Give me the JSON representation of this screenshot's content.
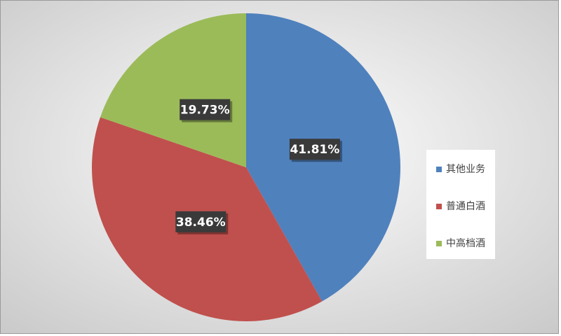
{
  "chart_data": {
    "type": "pie",
    "categories": [
      "其他业务",
      "普通白酒",
      "中高档酒"
    ],
    "values": [
      41.81,
      38.46,
      19.73
    ],
    "value_labels": [
      "41.81%",
      "38.46%",
      "19.73%"
    ],
    "colors": [
      "#4f81bd",
      "#c0504d",
      "#9bbb59"
    ],
    "legend": "right"
  }
}
